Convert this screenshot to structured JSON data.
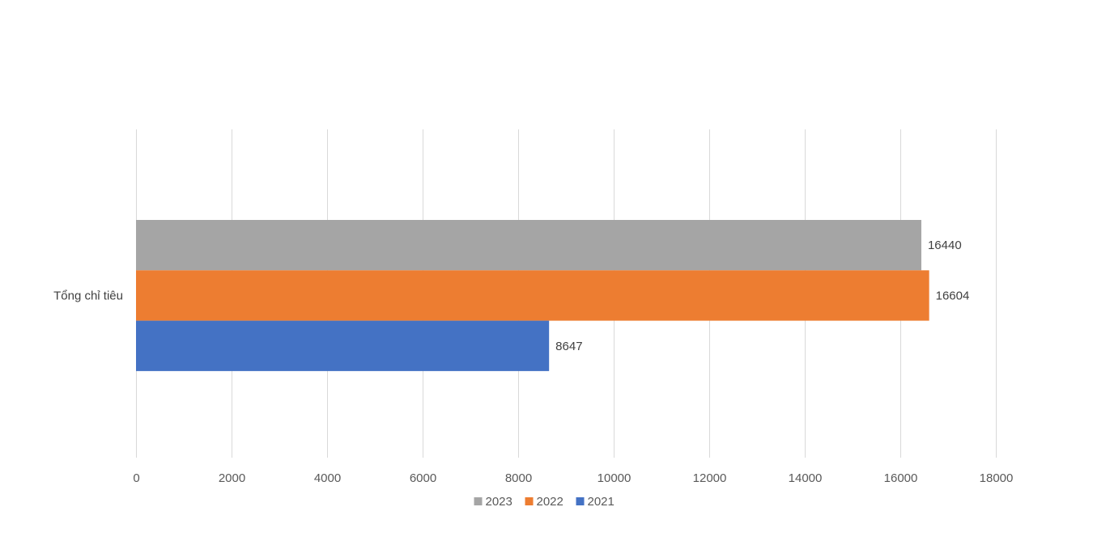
{
  "chart_data": {
    "type": "bar",
    "orientation": "horizontal",
    "categories": [
      "Tổng chỉ tiêu"
    ],
    "series": [
      {
        "name": "2023",
        "values": [
          16440
        ],
        "color": "#a5a5a5"
      },
      {
        "name": "2022",
        "values": [
          16604
        ],
        "color": "#ed7d31"
      },
      {
        "name": "2021",
        "values": [
          8647
        ],
        "color": "#4472c4"
      }
    ],
    "xlim": [
      0,
      18000
    ],
    "x_ticks": [
      0,
      2000,
      4000,
      6000,
      8000,
      10000,
      12000,
      14000,
      16000,
      18000
    ],
    "grid": true,
    "data_labels": true,
    "legend": {
      "position": "bottom",
      "order": [
        "2023",
        "2022",
        "2021"
      ]
    },
    "title": "",
    "xlabel": "",
    "ylabel": ""
  }
}
